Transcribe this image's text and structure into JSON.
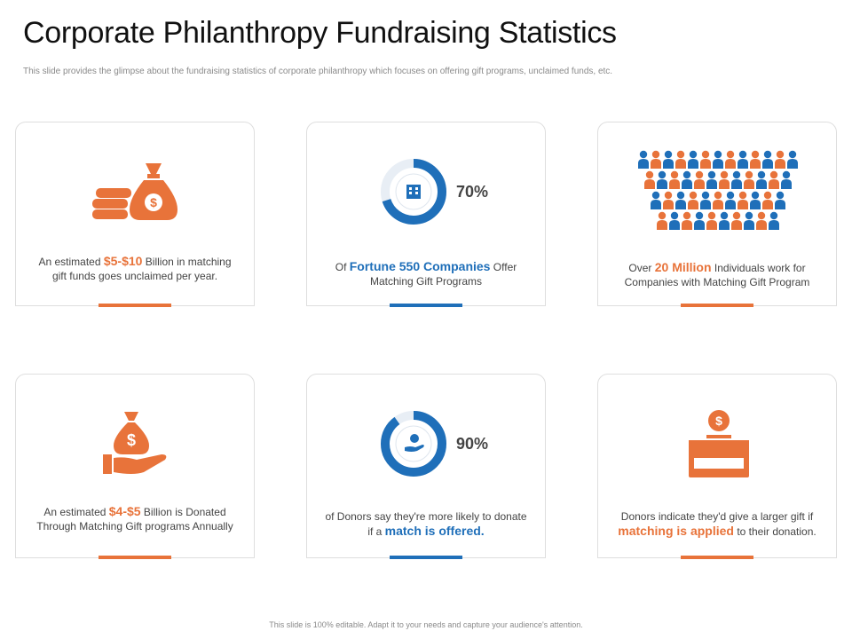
{
  "header": {
    "title": "Corporate Philanthropy Fundraising Statistics",
    "subtitle": "This slide provides the glimpse about the fundraising statistics of corporate philanthropy which focuses on offering gift programs, unclaimed funds, etc."
  },
  "cards": [
    {
      "pre": "An estimated ",
      "highlight": "$5-$10",
      "post": " Billion in matching gift funds goes unclaimed per year.",
      "icon": "money-bag-coins-icon"
    },
    {
      "pre": "Of ",
      "highlight": "Fortune 550 Companies",
      "post": " Offer Matching Gift Programs",
      "percent": "70%",
      "percent_value": 70,
      "icon": "building-icon"
    },
    {
      "pre": "Over ",
      "highlight": "20 Million",
      "post": " Individuals work for Companies with Matching Gift Program",
      "icon": "people-grid-icon"
    },
    {
      "pre": "An estimated ",
      "highlight": "$4-$5",
      "post": " Billion is Donated Through Matching Gift programs Annually",
      "icon": "money-bag-hand-icon"
    },
    {
      "pre": "of Donors say they're more likely to donate if a ",
      "highlight": "match is offered.",
      "post": "",
      "percent": "90%",
      "percent_value": 90,
      "icon": "hand-coin-icon"
    },
    {
      "pre": "Donors indicate they'd give a larger gift if ",
      "highlight": "matching is applied",
      "post": " to their donation.",
      "icon": "donation-box-icon"
    }
  ],
  "footer": {
    "text": "This slide is 100% editable. Adapt it to your needs and capture your audience's attention."
  },
  "colors": {
    "orange": "#e8733a",
    "blue": "#1f6fb9"
  }
}
